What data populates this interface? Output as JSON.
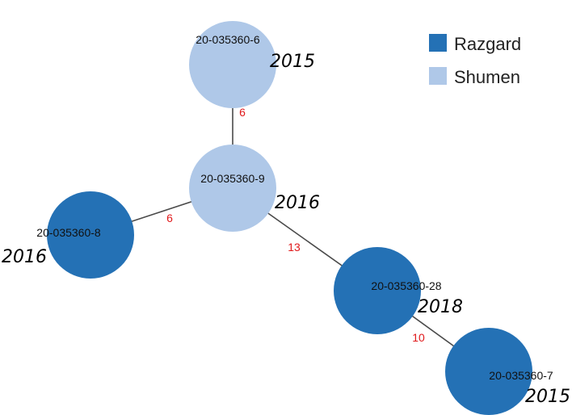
{
  "colors": {
    "Razgard": "#2471b5",
    "Shumen": "#afc8e8",
    "edge": "#4a4a4a",
    "weight": "#e0191b"
  },
  "legend": {
    "items": [
      {
        "label": "Razgard",
        "color": "#2471b5"
      },
      {
        "label": "Shumen",
        "color": "#afc8e8"
      }
    ]
  },
  "nodes": [
    {
      "id": "20-035360-6",
      "year": "2015",
      "group": "Shumen"
    },
    {
      "id": "20-035360-9",
      "year": "2016",
      "group": "Shumen"
    },
    {
      "id": "20-035360-8",
      "year": "2016",
      "group": "Razgard"
    },
    {
      "id": "20-035360-28",
      "year": "2018",
      "group": "Razgard"
    },
    {
      "id": "20-035360-7",
      "year": "2015",
      "group": "Razgard"
    }
  ],
  "edges": [
    {
      "from": "20-035360-6",
      "to": "20-035360-9",
      "weight": "6"
    },
    {
      "from": "20-035360-9",
      "to": "20-035360-8",
      "weight": "6"
    },
    {
      "from": "20-035360-9",
      "to": "20-035360-28",
      "weight": "13"
    },
    {
      "from": "20-035360-28",
      "to": "20-035360-7",
      "weight": "10"
    }
  ]
}
